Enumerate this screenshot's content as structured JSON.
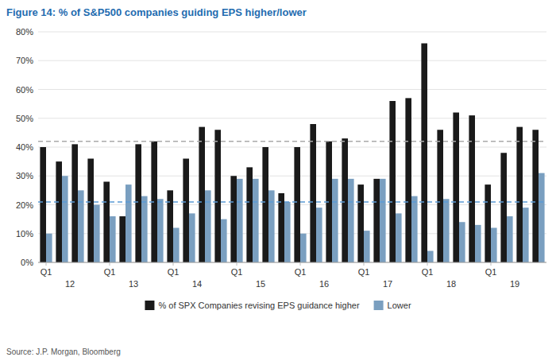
{
  "chart_data": {
    "type": "bar",
    "title": "Figure 14: % of S&P500 companies guiding EPS higher/lower",
    "title_color": "#1F6CB0",
    "source": "Source: J.P. Morgan, Bloomberg",
    "categories": [
      "Q1",
      null,
      null,
      null,
      "Q1",
      null,
      null,
      null,
      "Q1",
      null,
      null,
      null,
      "Q1",
      null,
      null,
      null,
      "Q1",
      null,
      null,
      null,
      "Q1",
      null,
      null,
      null,
      "Q1",
      null,
      null,
      null,
      "Q1",
      null,
      null,
      null
    ],
    "group_labels": [
      "12",
      "13",
      "14",
      "15",
      "16",
      "17",
      "18",
      "19"
    ],
    "series": [
      {
        "name": "% of SPX Companies revising EPS guidance higher",
        "color": "#1a1a1a",
        "values": [
          40,
          35,
          41,
          36,
          28,
          16,
          41,
          42,
          25,
          36,
          47,
          46,
          30,
          33,
          40,
          24,
          40,
          48,
          42,
          43,
          27,
          29,
          56,
          57,
          76,
          46,
          52,
          51,
          27,
          38,
          47,
          46
        ]
      },
      {
        "name": "Lower",
        "color": "#7a9fc0",
        "values": [
          10,
          30,
          25,
          20,
          16,
          27,
          23,
          22,
          12,
          17,
          25,
          15,
          29,
          29,
          25,
          21,
          10,
          19,
          29,
          29,
          11,
          29,
          17,
          23,
          4,
          22,
          14,
          13,
          12,
          16,
          19,
          31
        ]
      }
    ],
    "reference_lines": [
      {
        "value": 42,
        "color": "#aaaaaa",
        "line_style": "dashed"
      },
      {
        "value": 21,
        "color": "#5b9bd5",
        "line_style": "dashed"
      }
    ],
    "ylim": [
      0,
      80
    ],
    "yticks": [
      {
        "value": 0,
        "label": "0%"
      },
      {
        "value": 10,
        "label": "10%"
      },
      {
        "value": 20,
        "label": "20%"
      },
      {
        "value": 30,
        "label": "30%"
      },
      {
        "value": 40,
        "label": "40%"
      },
      {
        "value": 50,
        "label": "50%"
      },
      {
        "value": 60,
        "label": "60%"
      },
      {
        "value": 70,
        "label": "70%"
      },
      {
        "value": 80,
        "label": "80%"
      }
    ],
    "grid": true,
    "legend": "bottom"
  }
}
